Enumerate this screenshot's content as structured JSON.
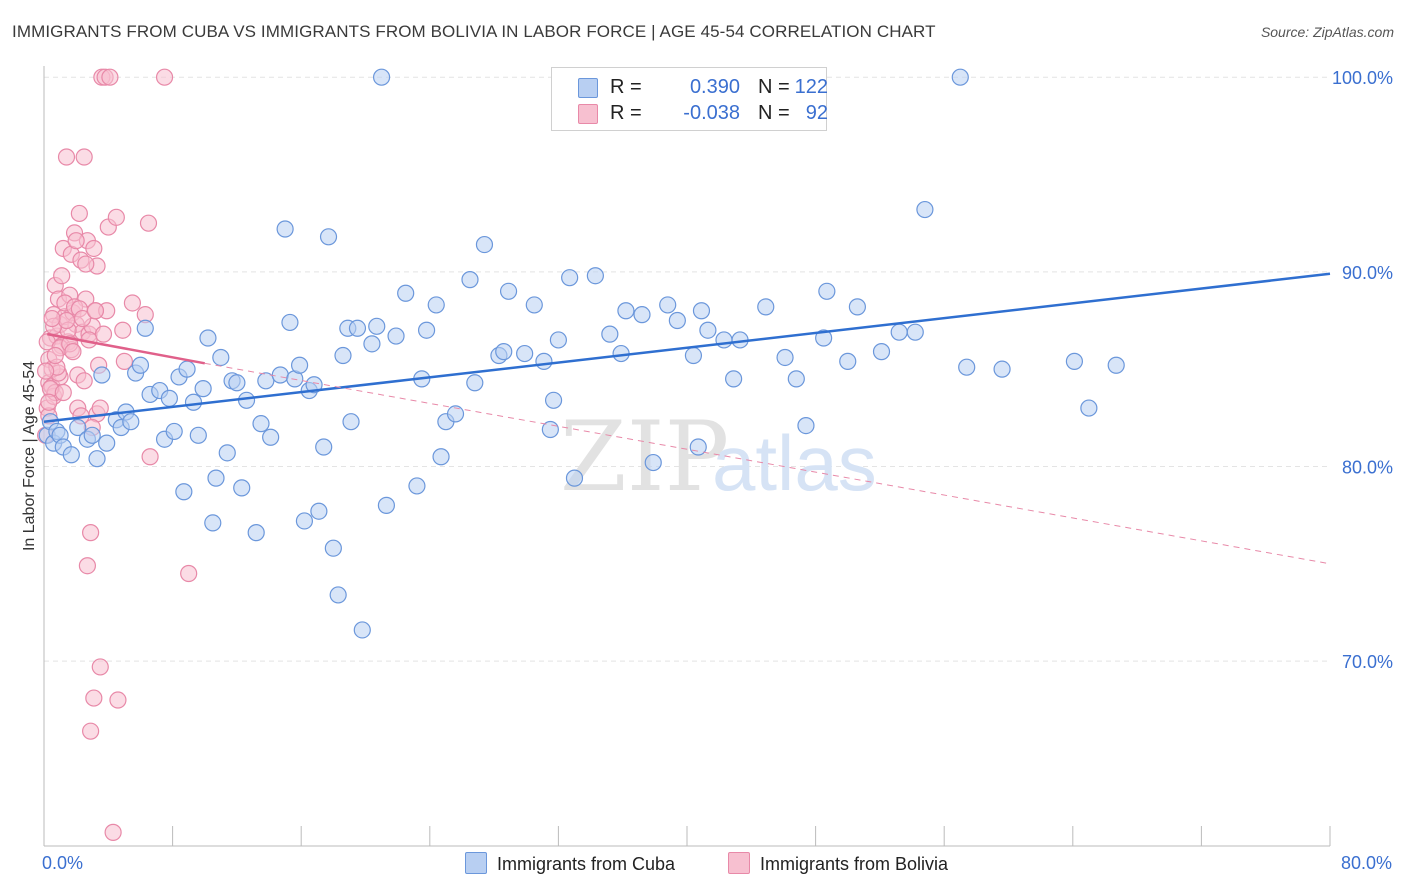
{
  "title": "IMMIGRANTS FROM CUBA VS IMMIGRANTS FROM BOLIVIA IN LABOR FORCE | AGE 45-54 CORRELATION CHART",
  "source": "Source: ZipAtlas.com",
  "watermark": {
    "zip": "ZIP",
    "atlas": "atlas"
  },
  "legend": {
    "rows": [
      {
        "r_label": "R =",
        "r_value": "0.390",
        "n_label": "N =",
        "n_value": "122",
        "fill": "#b8cff2",
        "stroke": "#6b97db"
      },
      {
        "r_label": "R =",
        "r_value": "-0.038",
        "n_label": "N =",
        "n_value": "92",
        "fill": "#f7c0d0",
        "stroke": "#e889a8"
      }
    ]
  },
  "chart_data": {
    "type": "scatter",
    "title": "IMMIGRANTS FROM CUBA VS IMMIGRANTS FROM BOLIVIA IN LABOR FORCE | AGE 45-54 CORRELATION CHART",
    "xlabel": "",
    "ylabel": "In Labor Force | Age 45-54",
    "xlim": [
      0,
      80
    ],
    "ylim": [
      60.5,
      101.5
    ],
    "x_tick_labels": [
      "0.0%",
      "80.0%"
    ],
    "y_ticks": [
      70,
      80,
      90,
      100
    ],
    "y_tick_labels": [
      "70.0%",
      "80.0%",
      "90.0%",
      "100.0%"
    ],
    "grid": true,
    "legend_placement": "top-center",
    "series": [
      {
        "name": "Immigrants from Cuba",
        "color": "#6b97db",
        "fill": "#b8cff2",
        "trend": {
          "x": [
            0,
            80
          ],
          "y": [
            82.3,
            89.9
          ]
        },
        "points": [
          [
            0.2,
            81.6
          ],
          [
            0.4,
            82.3
          ],
          [
            0.6,
            81.2
          ],
          [
            0.8,
            81.8
          ],
          [
            1.0,
            81.6
          ],
          [
            1.2,
            81.0
          ],
          [
            1.7,
            80.6
          ],
          [
            2.1,
            82.0
          ],
          [
            2.7,
            81.4
          ],
          [
            3.0,
            81.6
          ],
          [
            3.3,
            80.4
          ],
          [
            3.6,
            84.7
          ],
          [
            3.9,
            81.2
          ],
          [
            4.5,
            82.4
          ],
          [
            4.8,
            82.0
          ],
          [
            5.1,
            82.8
          ],
          [
            5.4,
            82.3
          ],
          [
            5.7,
            84.8
          ],
          [
            6.0,
            85.2
          ],
          [
            6.3,
            87.1
          ],
          [
            6.6,
            83.7
          ],
          [
            7.2,
            83.9
          ],
          [
            7.5,
            81.4
          ],
          [
            7.8,
            83.5
          ],
          [
            8.1,
            81.8
          ],
          [
            8.4,
            84.6
          ],
          [
            8.7,
            78.7
          ],
          [
            8.9,
            85.0
          ],
          [
            9.3,
            83.3
          ],
          [
            9.6,
            81.6
          ],
          [
            9.9,
            84.0
          ],
          [
            10.2,
            86.6
          ],
          [
            10.5,
            77.1
          ],
          [
            10.7,
            79.4
          ],
          [
            11.0,
            85.6
          ],
          [
            11.4,
            80.7
          ],
          [
            11.7,
            84.4
          ],
          [
            12.0,
            84.3
          ],
          [
            12.3,
            78.9
          ],
          [
            12.6,
            83.4
          ],
          [
            13.2,
            76.6
          ],
          [
            13.5,
            82.2
          ],
          [
            13.8,
            84.4
          ],
          [
            14.1,
            81.5
          ],
          [
            14.7,
            84.7
          ],
          [
            15.0,
            92.2
          ],
          [
            15.3,
            87.4
          ],
          [
            15.6,
            84.5
          ],
          [
            15.9,
            85.2
          ],
          [
            16.2,
            77.2
          ],
          [
            16.5,
            83.9
          ],
          [
            16.8,
            84.2
          ],
          [
            17.1,
            77.7
          ],
          [
            17.4,
            81.0
          ],
          [
            17.7,
            91.8
          ],
          [
            18.0,
            75.8
          ],
          [
            18.3,
            73.4
          ],
          [
            18.6,
            85.7
          ],
          [
            18.9,
            87.1
          ],
          [
            19.1,
            82.3
          ],
          [
            19.5,
            87.1
          ],
          [
            19.8,
            71.6
          ],
          [
            20.4,
            86.3
          ],
          [
            20.7,
            87.2
          ],
          [
            21.0,
            100.0
          ],
          [
            21.3,
            78.0
          ],
          [
            21.9,
            86.7
          ],
          [
            22.5,
            88.9
          ],
          [
            23.2,
            79.0
          ],
          [
            23.5,
            84.5
          ],
          [
            23.8,
            87.0
          ],
          [
            24.4,
            88.3
          ],
          [
            24.7,
            80.5
          ],
          [
            25.0,
            82.3
          ],
          [
            25.6,
            82.7
          ],
          [
            26.5,
            89.6
          ],
          [
            26.8,
            84.3
          ],
          [
            27.4,
            91.4
          ],
          [
            28.3,
            85.7
          ],
          [
            28.6,
            85.9
          ],
          [
            28.9,
            89.0
          ],
          [
            29.9,
            85.8
          ],
          [
            30.5,
            88.3
          ],
          [
            31.1,
            85.4
          ],
          [
            31.5,
            81.9
          ],
          [
            31.7,
            83.4
          ],
          [
            32.0,
            86.5
          ],
          [
            32.7,
            89.7
          ],
          [
            33.0,
            79.4
          ],
          [
            34.3,
            89.8
          ],
          [
            35.2,
            86.8
          ],
          [
            35.9,
            85.8
          ],
          [
            36.2,
            88.0
          ],
          [
            37.2,
            87.8
          ],
          [
            37.9,
            80.2
          ],
          [
            38.8,
            88.3
          ],
          [
            39.4,
            87.5
          ],
          [
            40.4,
            85.7
          ],
          [
            40.7,
            81.0
          ],
          [
            40.9,
            88.0
          ],
          [
            41.3,
            87.0
          ],
          [
            42.3,
            86.5
          ],
          [
            42.9,
            84.5
          ],
          [
            43.3,
            86.5
          ],
          [
            44.9,
            88.2
          ],
          [
            46.1,
            85.6
          ],
          [
            46.8,
            84.5
          ],
          [
            47.4,
            82.1
          ],
          [
            48.5,
            86.6
          ],
          [
            48.7,
            89.0
          ],
          [
            50.0,
            85.4
          ],
          [
            50.6,
            88.2
          ],
          [
            52.1,
            85.9
          ],
          [
            53.2,
            86.9
          ],
          [
            54.2,
            86.9
          ],
          [
            54.8,
            93.2
          ],
          [
            57.0,
            100.0
          ],
          [
            57.4,
            85.1
          ],
          [
            59.6,
            85.0
          ],
          [
            64.1,
            85.4
          ],
          [
            65.0,
            83.0
          ],
          [
            66.7,
            85.2
          ]
        ]
      },
      {
        "name": "Immigrants from Bolivia",
        "color": "#e889a8",
        "fill": "#f7c0d0",
        "trend": {
          "x": [
            0.2,
            10.0
          ],
          "y": [
            86.8,
            85.3
          ]
        },
        "trend_extended": {
          "x": [
            10.0,
            80.0
          ],
          "y": [
            85.3,
            75.0
          ]
        },
        "points": [
          [
            0.1,
            81.6
          ],
          [
            0.2,
            83.0
          ],
          [
            0.3,
            84.3
          ],
          [
            0.3,
            85.5
          ],
          [
            0.4,
            86.6
          ],
          [
            0.5,
            84.1
          ],
          [
            0.6,
            87.8
          ],
          [
            0.6,
            83.6
          ],
          [
            0.7,
            89.3
          ],
          [
            0.8,
            86.7
          ],
          [
            0.9,
            88.6
          ],
          [
            1.0,
            87.3
          ],
          [
            1.0,
            84.6
          ],
          [
            1.1,
            89.8
          ],
          [
            1.2,
            91.2
          ],
          [
            1.3,
            87.7
          ],
          [
            1.4,
            95.9
          ],
          [
            1.5,
            86.4
          ],
          [
            1.6,
            88.8
          ],
          [
            1.7,
            90.9
          ],
          [
            1.8,
            87.9
          ],
          [
            1.9,
            92.0
          ],
          [
            2.0,
            87.3
          ],
          [
            2.1,
            84.7
          ],
          [
            2.2,
            93.0
          ],
          [
            2.3,
            90.6
          ],
          [
            2.4,
            86.9
          ],
          [
            2.5,
            95.9
          ],
          [
            2.6,
            88.6
          ],
          [
            2.7,
            91.6
          ],
          [
            2.8,
            86.8
          ],
          [
            2.9,
            76.6
          ],
          [
            3.0,
            87.2
          ],
          [
            3.1,
            91.2
          ],
          [
            3.2,
            88.0
          ],
          [
            3.3,
            90.3
          ],
          [
            3.4,
            85.2
          ],
          [
            3.5,
            69.7
          ],
          [
            3.6,
            100.0
          ],
          [
            3.7,
            86.8
          ],
          [
            3.8,
            100.0
          ],
          [
            3.9,
            88.0
          ],
          [
            4.0,
            92.3
          ],
          [
            4.1,
            100.0
          ],
          [
            4.3,
            61.2
          ],
          [
            4.5,
            92.8
          ],
          [
            4.6,
            68.0
          ],
          [
            4.9,
            87.0
          ],
          [
            5.0,
            85.4
          ],
          [
            5.5,
            88.4
          ],
          [
            6.3,
            87.8
          ],
          [
            6.5,
            92.5
          ],
          [
            6.6,
            80.5
          ],
          [
            7.5,
            100.0
          ],
          [
            9.0,
            74.5
          ],
          [
            0.3,
            82.6
          ],
          [
            0.5,
            85.0
          ],
          [
            0.7,
            83.8
          ],
          [
            0.9,
            84.8
          ],
          [
            1.1,
            86.2
          ],
          [
            1.3,
            88.4
          ],
          [
            1.5,
            87.0
          ],
          [
            1.7,
            86.0
          ],
          [
            1.9,
            88.2
          ],
          [
            2.1,
            83.0
          ],
          [
            2.3,
            82.6
          ],
          [
            2.5,
            84.4
          ],
          [
            2.7,
            74.9
          ],
          [
            2.9,
            66.4
          ],
          [
            3.1,
            68.1
          ],
          [
            3.3,
            82.7
          ],
          [
            3.5,
            83.0
          ],
          [
            0.2,
            86.4
          ],
          [
            0.4,
            84.0
          ],
          [
            0.6,
            87.2
          ],
          [
            0.8,
            85.1
          ],
          [
            1.0,
            86.1
          ],
          [
            1.2,
            83.8
          ],
          [
            1.4,
            87.5
          ],
          [
            1.6,
            86.3
          ],
          [
            1.8,
            85.9
          ],
          [
            2.0,
            91.6
          ],
          [
            2.2,
            88.1
          ],
          [
            2.4,
            87.6
          ],
          [
            2.6,
            90.4
          ],
          [
            2.8,
            86.5
          ],
          [
            3.0,
            82.0
          ],
          [
            3.2,
            88.0
          ],
          [
            0.1,
            84.9
          ],
          [
            0.3,
            83.3
          ],
          [
            0.5,
            87.6
          ],
          [
            0.7,
            85.7
          ]
        ]
      }
    ]
  }
}
